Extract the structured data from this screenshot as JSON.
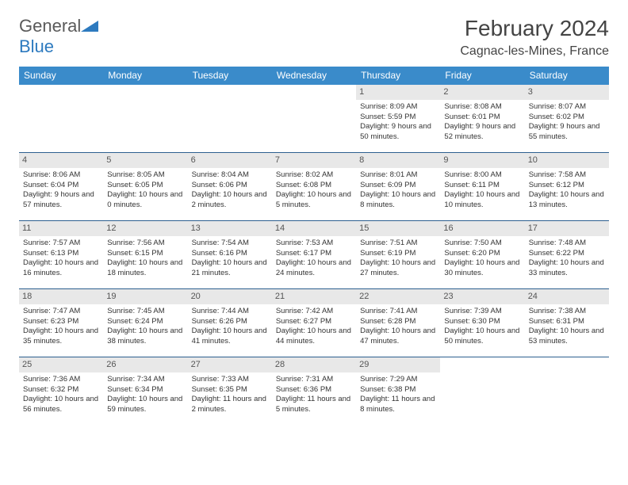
{
  "logo": {
    "text1": "General",
    "text2": "Blue",
    "icon_color": "#2d7abf"
  },
  "title": "February 2024",
  "location": "Cagnac-les-Mines, France",
  "header_bg": "#3a8bca",
  "header_fg": "#ffffff",
  "daynum_bg": "#e8e8e8",
  "border_color": "#2d5f8f",
  "weekdays": [
    "Sunday",
    "Monday",
    "Tuesday",
    "Wednesday",
    "Thursday",
    "Friday",
    "Saturday"
  ],
  "cells": [
    [
      null,
      null,
      null,
      null,
      {
        "n": "1",
        "sr": "8:09 AM",
        "ss": "5:59 PM",
        "dl": "9 hours and 50 minutes."
      },
      {
        "n": "2",
        "sr": "8:08 AM",
        "ss": "6:01 PM",
        "dl": "9 hours and 52 minutes."
      },
      {
        "n": "3",
        "sr": "8:07 AM",
        "ss": "6:02 PM",
        "dl": "9 hours and 55 minutes."
      }
    ],
    [
      {
        "n": "4",
        "sr": "8:06 AM",
        "ss": "6:04 PM",
        "dl": "9 hours and 57 minutes."
      },
      {
        "n": "5",
        "sr": "8:05 AM",
        "ss": "6:05 PM",
        "dl": "10 hours and 0 minutes."
      },
      {
        "n": "6",
        "sr": "8:04 AM",
        "ss": "6:06 PM",
        "dl": "10 hours and 2 minutes."
      },
      {
        "n": "7",
        "sr": "8:02 AM",
        "ss": "6:08 PM",
        "dl": "10 hours and 5 minutes."
      },
      {
        "n": "8",
        "sr": "8:01 AM",
        "ss": "6:09 PM",
        "dl": "10 hours and 8 minutes."
      },
      {
        "n": "9",
        "sr": "8:00 AM",
        "ss": "6:11 PM",
        "dl": "10 hours and 10 minutes."
      },
      {
        "n": "10",
        "sr": "7:58 AM",
        "ss": "6:12 PM",
        "dl": "10 hours and 13 minutes."
      }
    ],
    [
      {
        "n": "11",
        "sr": "7:57 AM",
        "ss": "6:13 PM",
        "dl": "10 hours and 16 minutes."
      },
      {
        "n": "12",
        "sr": "7:56 AM",
        "ss": "6:15 PM",
        "dl": "10 hours and 18 minutes."
      },
      {
        "n": "13",
        "sr": "7:54 AM",
        "ss": "6:16 PM",
        "dl": "10 hours and 21 minutes."
      },
      {
        "n": "14",
        "sr": "7:53 AM",
        "ss": "6:17 PM",
        "dl": "10 hours and 24 minutes."
      },
      {
        "n": "15",
        "sr": "7:51 AM",
        "ss": "6:19 PM",
        "dl": "10 hours and 27 minutes."
      },
      {
        "n": "16",
        "sr": "7:50 AM",
        "ss": "6:20 PM",
        "dl": "10 hours and 30 minutes."
      },
      {
        "n": "17",
        "sr": "7:48 AM",
        "ss": "6:22 PM",
        "dl": "10 hours and 33 minutes."
      }
    ],
    [
      {
        "n": "18",
        "sr": "7:47 AM",
        "ss": "6:23 PM",
        "dl": "10 hours and 35 minutes."
      },
      {
        "n": "19",
        "sr": "7:45 AM",
        "ss": "6:24 PM",
        "dl": "10 hours and 38 minutes."
      },
      {
        "n": "20",
        "sr": "7:44 AM",
        "ss": "6:26 PM",
        "dl": "10 hours and 41 minutes."
      },
      {
        "n": "21",
        "sr": "7:42 AM",
        "ss": "6:27 PM",
        "dl": "10 hours and 44 minutes."
      },
      {
        "n": "22",
        "sr": "7:41 AM",
        "ss": "6:28 PM",
        "dl": "10 hours and 47 minutes."
      },
      {
        "n": "23",
        "sr": "7:39 AM",
        "ss": "6:30 PM",
        "dl": "10 hours and 50 minutes."
      },
      {
        "n": "24",
        "sr": "7:38 AM",
        "ss": "6:31 PM",
        "dl": "10 hours and 53 minutes."
      }
    ],
    [
      {
        "n": "25",
        "sr": "7:36 AM",
        "ss": "6:32 PM",
        "dl": "10 hours and 56 minutes."
      },
      {
        "n": "26",
        "sr": "7:34 AM",
        "ss": "6:34 PM",
        "dl": "10 hours and 59 minutes."
      },
      {
        "n": "27",
        "sr": "7:33 AM",
        "ss": "6:35 PM",
        "dl": "11 hours and 2 minutes."
      },
      {
        "n": "28",
        "sr": "7:31 AM",
        "ss": "6:36 PM",
        "dl": "11 hours and 5 minutes."
      },
      {
        "n": "29",
        "sr": "7:29 AM",
        "ss": "6:38 PM",
        "dl": "11 hours and 8 minutes."
      },
      null,
      null
    ]
  ],
  "labels": {
    "sunrise": "Sunrise: ",
    "sunset": "Sunset: ",
    "daylight": "Daylight: "
  }
}
